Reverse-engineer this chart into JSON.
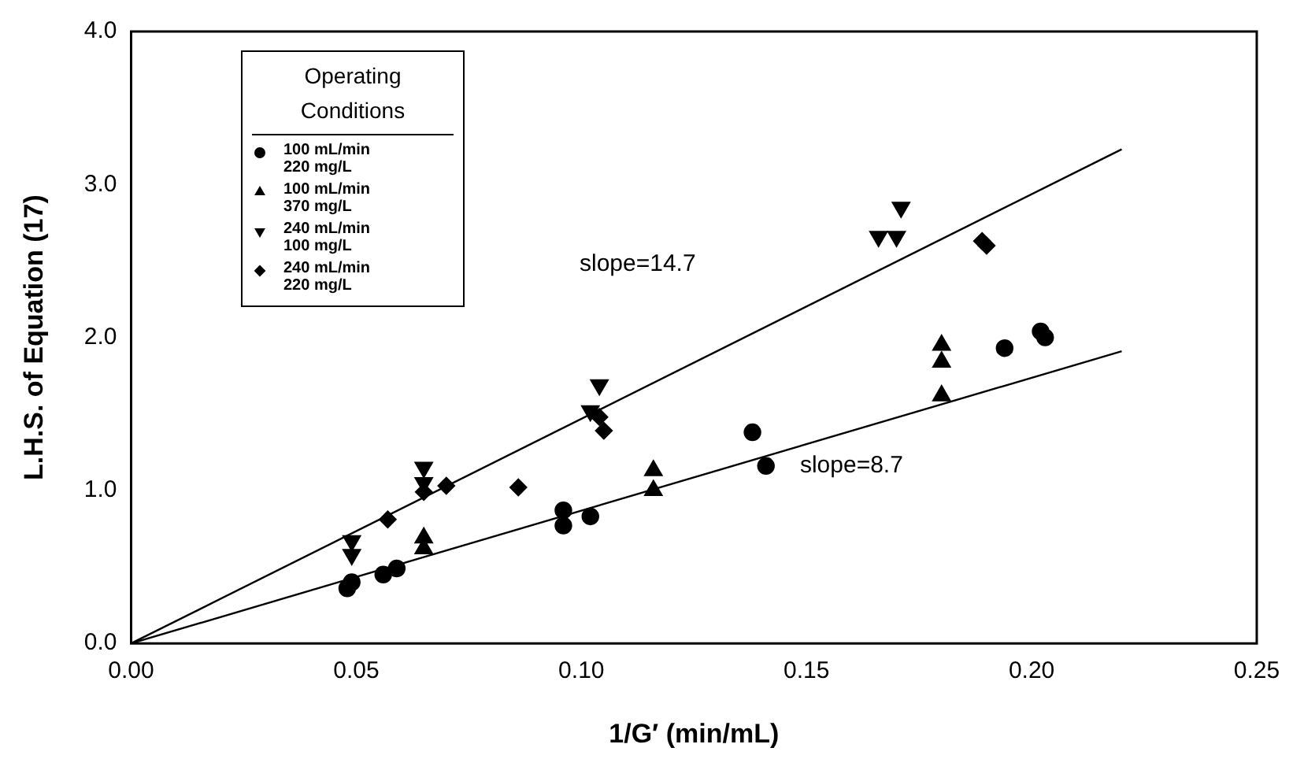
{
  "chart_data": {
    "type": "scatter",
    "xlabel": "1/G′ (min/mL)",
    "ylabel": "L.H.S. of Equation (17)",
    "legend_title": "Operating Conditions",
    "legend": "top left",
    "grid": false,
    "xlim": [
      0,
      0.25
    ],
    "xticks": [
      {
        "value": 0,
        "label": "0.00"
      },
      {
        "value": 0.05,
        "label": "0.05"
      },
      {
        "value": 0.1,
        "label": "0.10"
      },
      {
        "value": 0.15,
        "label": "0.15"
      },
      {
        "value": 0.2,
        "label": "0.20"
      },
      {
        "value": 0.25,
        "label": "0.25"
      }
    ],
    "ylim": [
      0,
      4
    ],
    "yticks": [
      {
        "value": 0,
        "label": "0.0"
      },
      {
        "value": 1,
        "label": "1.0"
      },
      {
        "value": 2,
        "label": "2.0"
      },
      {
        "value": 3,
        "label": "3.0"
      },
      {
        "value": 4,
        "label": "4.0"
      }
    ],
    "series": [
      {
        "name": "100 mL/min 220 mg/L",
        "color": "#000000",
        "marker": "circle",
        "x": [
          0.048,
          0.049,
          0.056,
          0.059,
          0.096,
          0.096,
          0.102,
          0.138,
          0.141,
          0.194,
          0.202,
          0.203
        ],
        "values": [
          0.36,
          0.4,
          0.45,
          0.49,
          0.87,
          0.77,
          0.83,
          1.38,
          1.16,
          1.93,
          2.04,
          2.0
        ]
      },
      {
        "name": "100 mL/min 370 mg/L",
        "color": "#000000",
        "marker": "triangle",
        "x": [
          0.065,
          0.065,
          0.116,
          0.116,
          0.18,
          0.18,
          0.18
        ],
        "values": [
          0.69,
          0.62,
          1.13,
          1.0,
          1.95,
          1.84,
          1.62
        ]
      },
      {
        "name": "240 mL/min 100 mg/L",
        "color": "#000000",
        "marker": "triangle-down",
        "x": [
          0.049,
          0.049,
          0.065,
          0.065,
          0.104,
          0.102,
          0.166,
          0.171,
          0.17
        ],
        "values": [
          0.67,
          0.58,
          1.15,
          1.05,
          1.69,
          1.52,
          2.66,
          2.85,
          2.66
        ]
      },
      {
        "name": "240 mL/min 220 mg/L",
        "color": "#000000",
        "marker": "diamond",
        "x": [
          0.057,
          0.065,
          0.07,
          0.086,
          0.104,
          0.105,
          0.189,
          0.19
        ],
        "values": [
          0.81,
          0.99,
          1.03,
          1.02,
          1.48,
          1.39,
          2.63,
          2.6
        ]
      },
      {
        "type": "line",
        "color": "#000000",
        "marker": "none",
        "x": [
          0,
          0.22
        ],
        "values": [
          0,
          3.23
        ]
      },
      {
        "type": "line",
        "color": "#000000",
        "marker": "none",
        "x": [
          0,
          0.22
        ],
        "values": [
          0,
          1.91
        ]
      }
    ],
    "annotations": [
      "slope=14.7",
      "slope=8.7"
    ]
  }
}
